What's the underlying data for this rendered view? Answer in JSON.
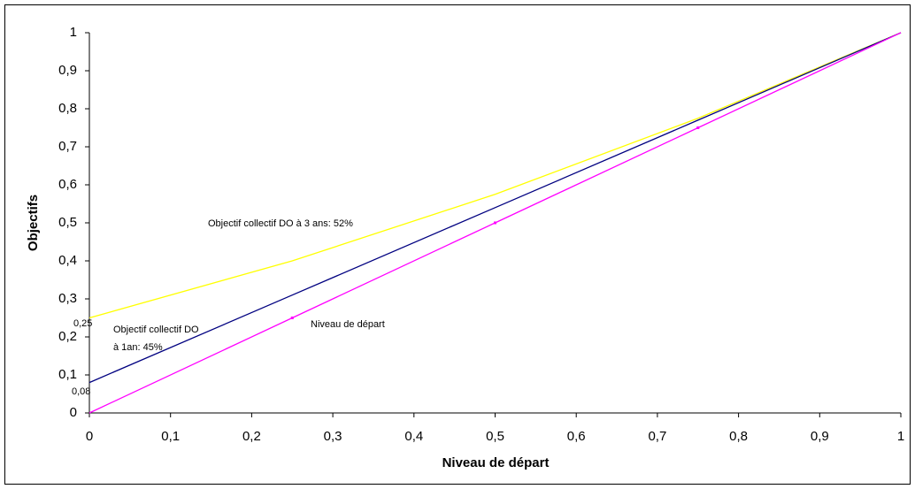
{
  "chart_data": {
    "type": "line",
    "x_label": "Niveau de départ",
    "y_label": "Objectifs",
    "x": [
      0,
      0.25,
      0.5,
      0.75,
      1
    ],
    "series": [
      {
        "color": "#ffff00",
        "values": [
          0.25,
          0.4,
          0.575,
          0.775,
          1
        ]
      },
      {
        "color": "#000080",
        "values": [
          0.08,
          0.31,
          0.54,
          0.77,
          1
        ]
      },
      {
        "color": "#ff00ff",
        "values": [
          0,
          0.25,
          0.5,
          0.75,
          1
        ],
        "markers": true
      }
    ],
    "xlim": [
      0,
      1
    ],
    "ylim": [
      0,
      1
    ],
    "xticks": [
      0,
      {
        "value": 0.1,
        "label": "0,1"
      },
      {
        "value": 0.2,
        "label": "0,2"
      },
      {
        "value": 0.3,
        "label": "0,3"
      },
      {
        "value": 0.4,
        "label": "0,4"
      },
      {
        "value": 0.5,
        "label": "0,5"
      },
      {
        "value": 0.6,
        "label": "0,6"
      },
      {
        "value": 0.7,
        "label": "0,7"
      },
      {
        "value": 0.8,
        "label": "0,8"
      },
      {
        "value": 0.9,
        "label": "0,9"
      },
      1
    ],
    "yticks": [
      0,
      {
        "value": 0.1,
        "label": "0,1"
      },
      {
        "value": 0.2,
        "label": "0,2"
      },
      {
        "value": 0.3,
        "label": "0,3"
      },
      {
        "value": 0.4,
        "label": "0,4"
      },
      {
        "value": 0.5,
        "label": "0,5"
      },
      {
        "value": 0.6,
        "label": "0,6"
      },
      {
        "value": 0.7,
        "label": "0,7"
      },
      {
        "value": 0.8,
        "label": "0,8"
      },
      {
        "value": 0.9,
        "label": "0,9"
      },
      1
    ],
    "annotations": [
      "Objectif collectif DO à 3 ans: 52%",
      "Objectif collectif DO",
      "à 1an: 45%",
      "Niveau de départ",
      "0,25",
      "0,08"
    ]
  }
}
